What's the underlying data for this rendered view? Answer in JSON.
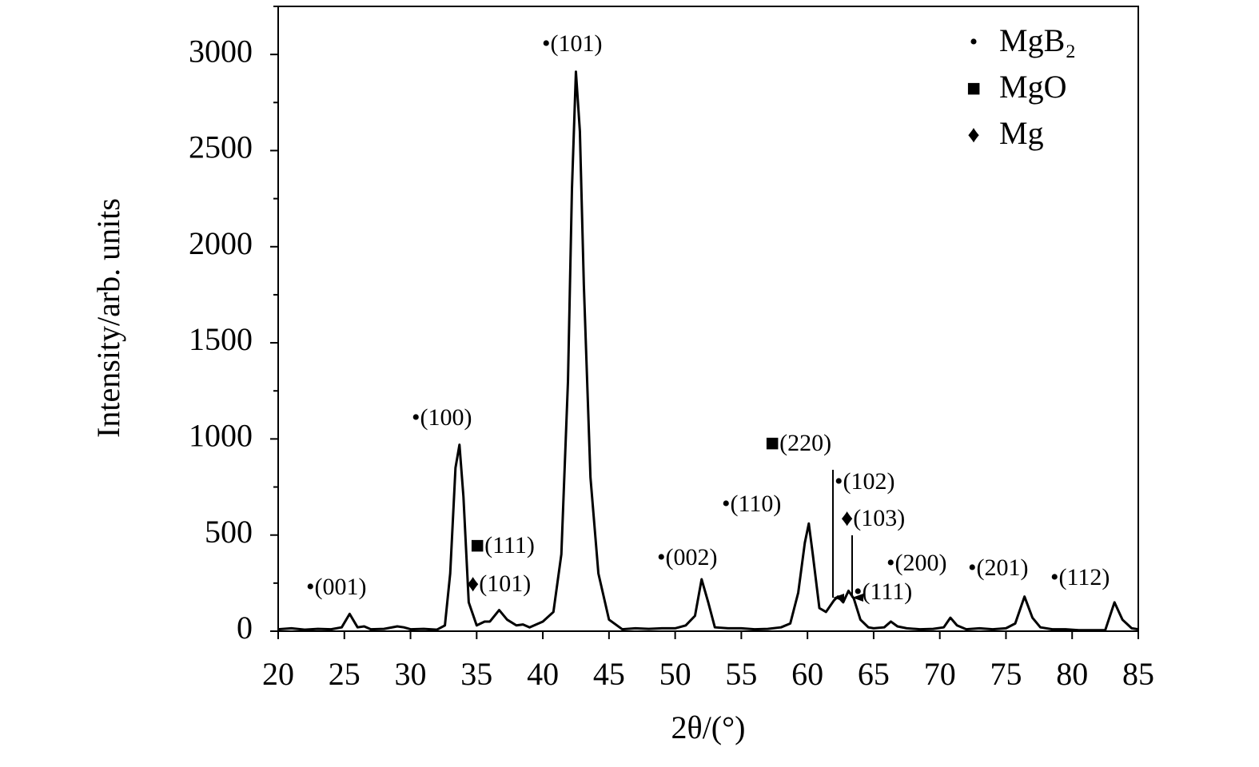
{
  "chart_data": {
    "type": "line",
    "x_label": "2θ/(°)",
    "y_label": "Intensity/arb. units",
    "x": [
      20,
      21,
      22,
      23,
      24,
      24.8,
      25.4,
      26,
      26.5,
      27,
      28,
      29,
      29.5,
      30,
      31,
      32,
      32.6,
      33,
      33.4,
      33.7,
      34,
      34.4,
      35,
      35.6,
      36,
      36.7,
      37.3,
      38,
      38.5,
      39,
      40,
      40.8,
      41.4,
      41.9,
      42.2,
      42.5,
      42.8,
      43.1,
      43.6,
      44.2,
      45,
      46,
      47,
      48,
      49,
      50,
      50.8,
      51.5,
      52,
      52.5,
      53,
      54,
      55,
      56,
      57,
      58,
      58.7,
      59.3,
      59.8,
      60.1,
      60.4,
      60.9,
      61.4,
      62,
      62.3,
      62.7,
      63.1,
      63.5,
      64,
      64.6,
      65,
      65.8,
      66.3,
      66.8,
      67.5,
      68.5,
      69.5,
      70.3,
      70.8,
      71.3,
      72,
      73,
      74,
      75,
      75.7,
      76.4,
      77,
      77.6,
      78.5,
      79.5,
      80.5,
      81.5,
      82.5,
      83.2,
      83.8,
      84.5,
      85
    ],
    "values": [
      10,
      15,
      8,
      12,
      10,
      20,
      90,
      20,
      25,
      10,
      12,
      25,
      20,
      10,
      12,
      8,
      30,
      300,
      850,
      970,
      700,
      150,
      30,
      50,
      50,
      110,
      60,
      30,
      35,
      20,
      50,
      100,
      400,
      1300,
      2300,
      2910,
      2600,
      1800,
      800,
      300,
      60,
      10,
      15,
      12,
      15,
      15,
      30,
      80,
      270,
      150,
      20,
      15,
      15,
      10,
      12,
      20,
      40,
      200,
      460,
      560,
      400,
      120,
      100,
      160,
      180,
      150,
      210,
      170,
      60,
      20,
      15,
      20,
      50,
      25,
      15,
      10,
      12,
      20,
      70,
      30,
      10,
      15,
      10,
      15,
      40,
      180,
      70,
      20,
      10,
      10,
      5,
      5,
      5,
      150,
      60,
      15,
      10
    ],
    "color": "#000000",
    "xlim": [
      20,
      85
    ],
    "ylim": [
      0,
      3250
    ],
    "xticks": [
      20,
      25,
      30,
      35,
      40,
      45,
      50,
      55,
      60,
      65,
      70,
      75,
      80,
      85
    ],
    "yticks": [
      0,
      500,
      1000,
      1500,
      2000,
      2500,
      3000
    ],
    "yminorticks": [
      250,
      750,
      1250,
      1750,
      2250,
      2750,
      3250
    ],
    "annotations": [
      "•(001)",
      "•(100)",
      "•(101)",
      "■(111)",
      "♦(101)",
      "•(002)",
      "•(110)",
      "■(220)",
      "•(102)",
      "♦(103)",
      "•(111)",
      "•(200)",
      "•(201)",
      "•(112)"
    ],
    "legend": [
      {
        "symbol": "•",
        "label": "MgB₂"
      },
      {
        "symbol": "■",
        "label": "MgO"
      },
      {
        "symbol": "♦",
        "label": "Mg"
      }
    ],
    "legend_position": "upper right"
  }
}
